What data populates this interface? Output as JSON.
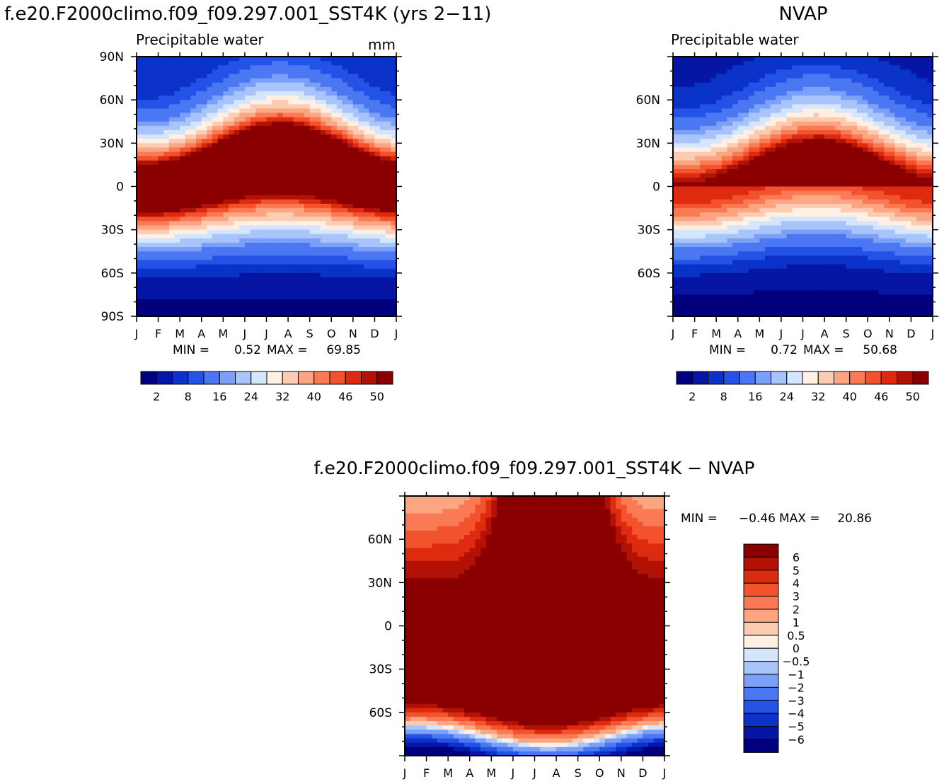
{
  "header": {
    "left_title": "f.e20.F2000climo.f09_f09.297.001_SST4K (yrs 2−11)",
    "right_title": "NVAP",
    "diff_title": "f.e20.F2000climo.f09_f09.297.001_SST4K − NVAP"
  },
  "colors": {
    "precip_scale": [
      "#00007f",
      "#0416a3",
      "#0b33c9",
      "#2452e6",
      "#4b78f2",
      "#7aa0f7",
      "#a8c4fa",
      "#d4e6fc",
      "#fff0e3",
      "#fcccb2",
      "#fba583",
      "#f97a54",
      "#f2522c",
      "#de2b10",
      "#b21205",
      "#8a0000"
    ],
    "diff_scale": [
      "#00007f",
      "#0416a3",
      "#0b33c9",
      "#2452e6",
      "#4b78f2",
      "#7aa0f7",
      "#a8c4fa",
      "#d4e6fc",
      "#fff0e3",
      "#fcccb2",
      "#fba583",
      "#f97a54",
      "#f2522c",
      "#de2b10",
      "#b21205",
      "#8a0000"
    ]
  },
  "chart_data": [
    {
      "type": "heatmap",
      "title": "f.e20.F2000climo.f09_f09.297.001_SST4K (yrs 2−11)",
      "subtitle": "Precipitable water",
      "units": "mm",
      "x": [
        "J",
        "F",
        "M",
        "A",
        "M",
        "J",
        "J",
        "A",
        "S",
        "O",
        "N",
        "D",
        "J"
      ],
      "y_ticks": [
        "90N",
        "60N",
        "30N",
        "0",
        "30S",
        "60S",
        "90S"
      ],
      "ylim": [
        -90,
        90
      ],
      "contour_levels": [
        2,
        5,
        8,
        11,
        16,
        19,
        24,
        28,
        32,
        36,
        40,
        43,
        46,
        48,
        50
      ],
      "colorbar_labels": [
        "2",
        "8",
        "16",
        "24",
        "32",
        "40",
        "46",
        "50"
      ],
      "min_label": "MIN =",
      "min": "0.52",
      "max_label": "MAX =",
      "max": "69.85",
      "field": "precip_model"
    },
    {
      "type": "heatmap",
      "title": "NVAP",
      "subtitle": "Precipitable water",
      "x": [
        "J",
        "F",
        "M",
        "A",
        "M",
        "J",
        "J",
        "A",
        "S",
        "O",
        "N",
        "D",
        "J"
      ],
      "y_ticks": [
        "60N",
        "30N",
        "0",
        "30S",
        "60S"
      ],
      "ylim": [
        -90,
        90
      ],
      "contour_levels": [
        2,
        5,
        8,
        11,
        16,
        19,
        24,
        28,
        32,
        36,
        40,
        43,
        46,
        48,
        50
      ],
      "colorbar_labels": [
        "2",
        "8",
        "16",
        "24",
        "32",
        "40",
        "46",
        "50"
      ],
      "min_label": "MIN =",
      "min": "0.72",
      "max_label": "MAX =",
      "max": "50.68",
      "field": "precip_obs"
    },
    {
      "type": "heatmap",
      "title": "f.e20.F2000climo.f09_f09.297.001_SST4K − NVAP",
      "x": [
        "J",
        "F",
        "M",
        "A",
        "M",
        "J",
        "J",
        "A",
        "S",
        "O",
        "N",
        "D",
        "J"
      ],
      "y_ticks": [
        "60N",
        "30N",
        "0",
        "30S",
        "60S"
      ],
      "ylim": [
        -90,
        90
      ],
      "contour_levels": [
        -6,
        -5,
        -4,
        -3,
        -2,
        -1,
        -0.5,
        0,
        0.5,
        1,
        2,
        3,
        4,
        5,
        6
      ],
      "colorbar_labels": [
        "6",
        "5",
        "4",
        "3",
        "2",
        "1",
        "0.5",
        "0",
        "−0.5",
        "−1",
        "−2",
        "−3",
        "−4",
        "−5",
        "−6"
      ],
      "min_label": "MIN =",
      "min": "−0.46",
      "max_label": "MAX =",
      "max": "20.86",
      "field": "difference"
    }
  ]
}
